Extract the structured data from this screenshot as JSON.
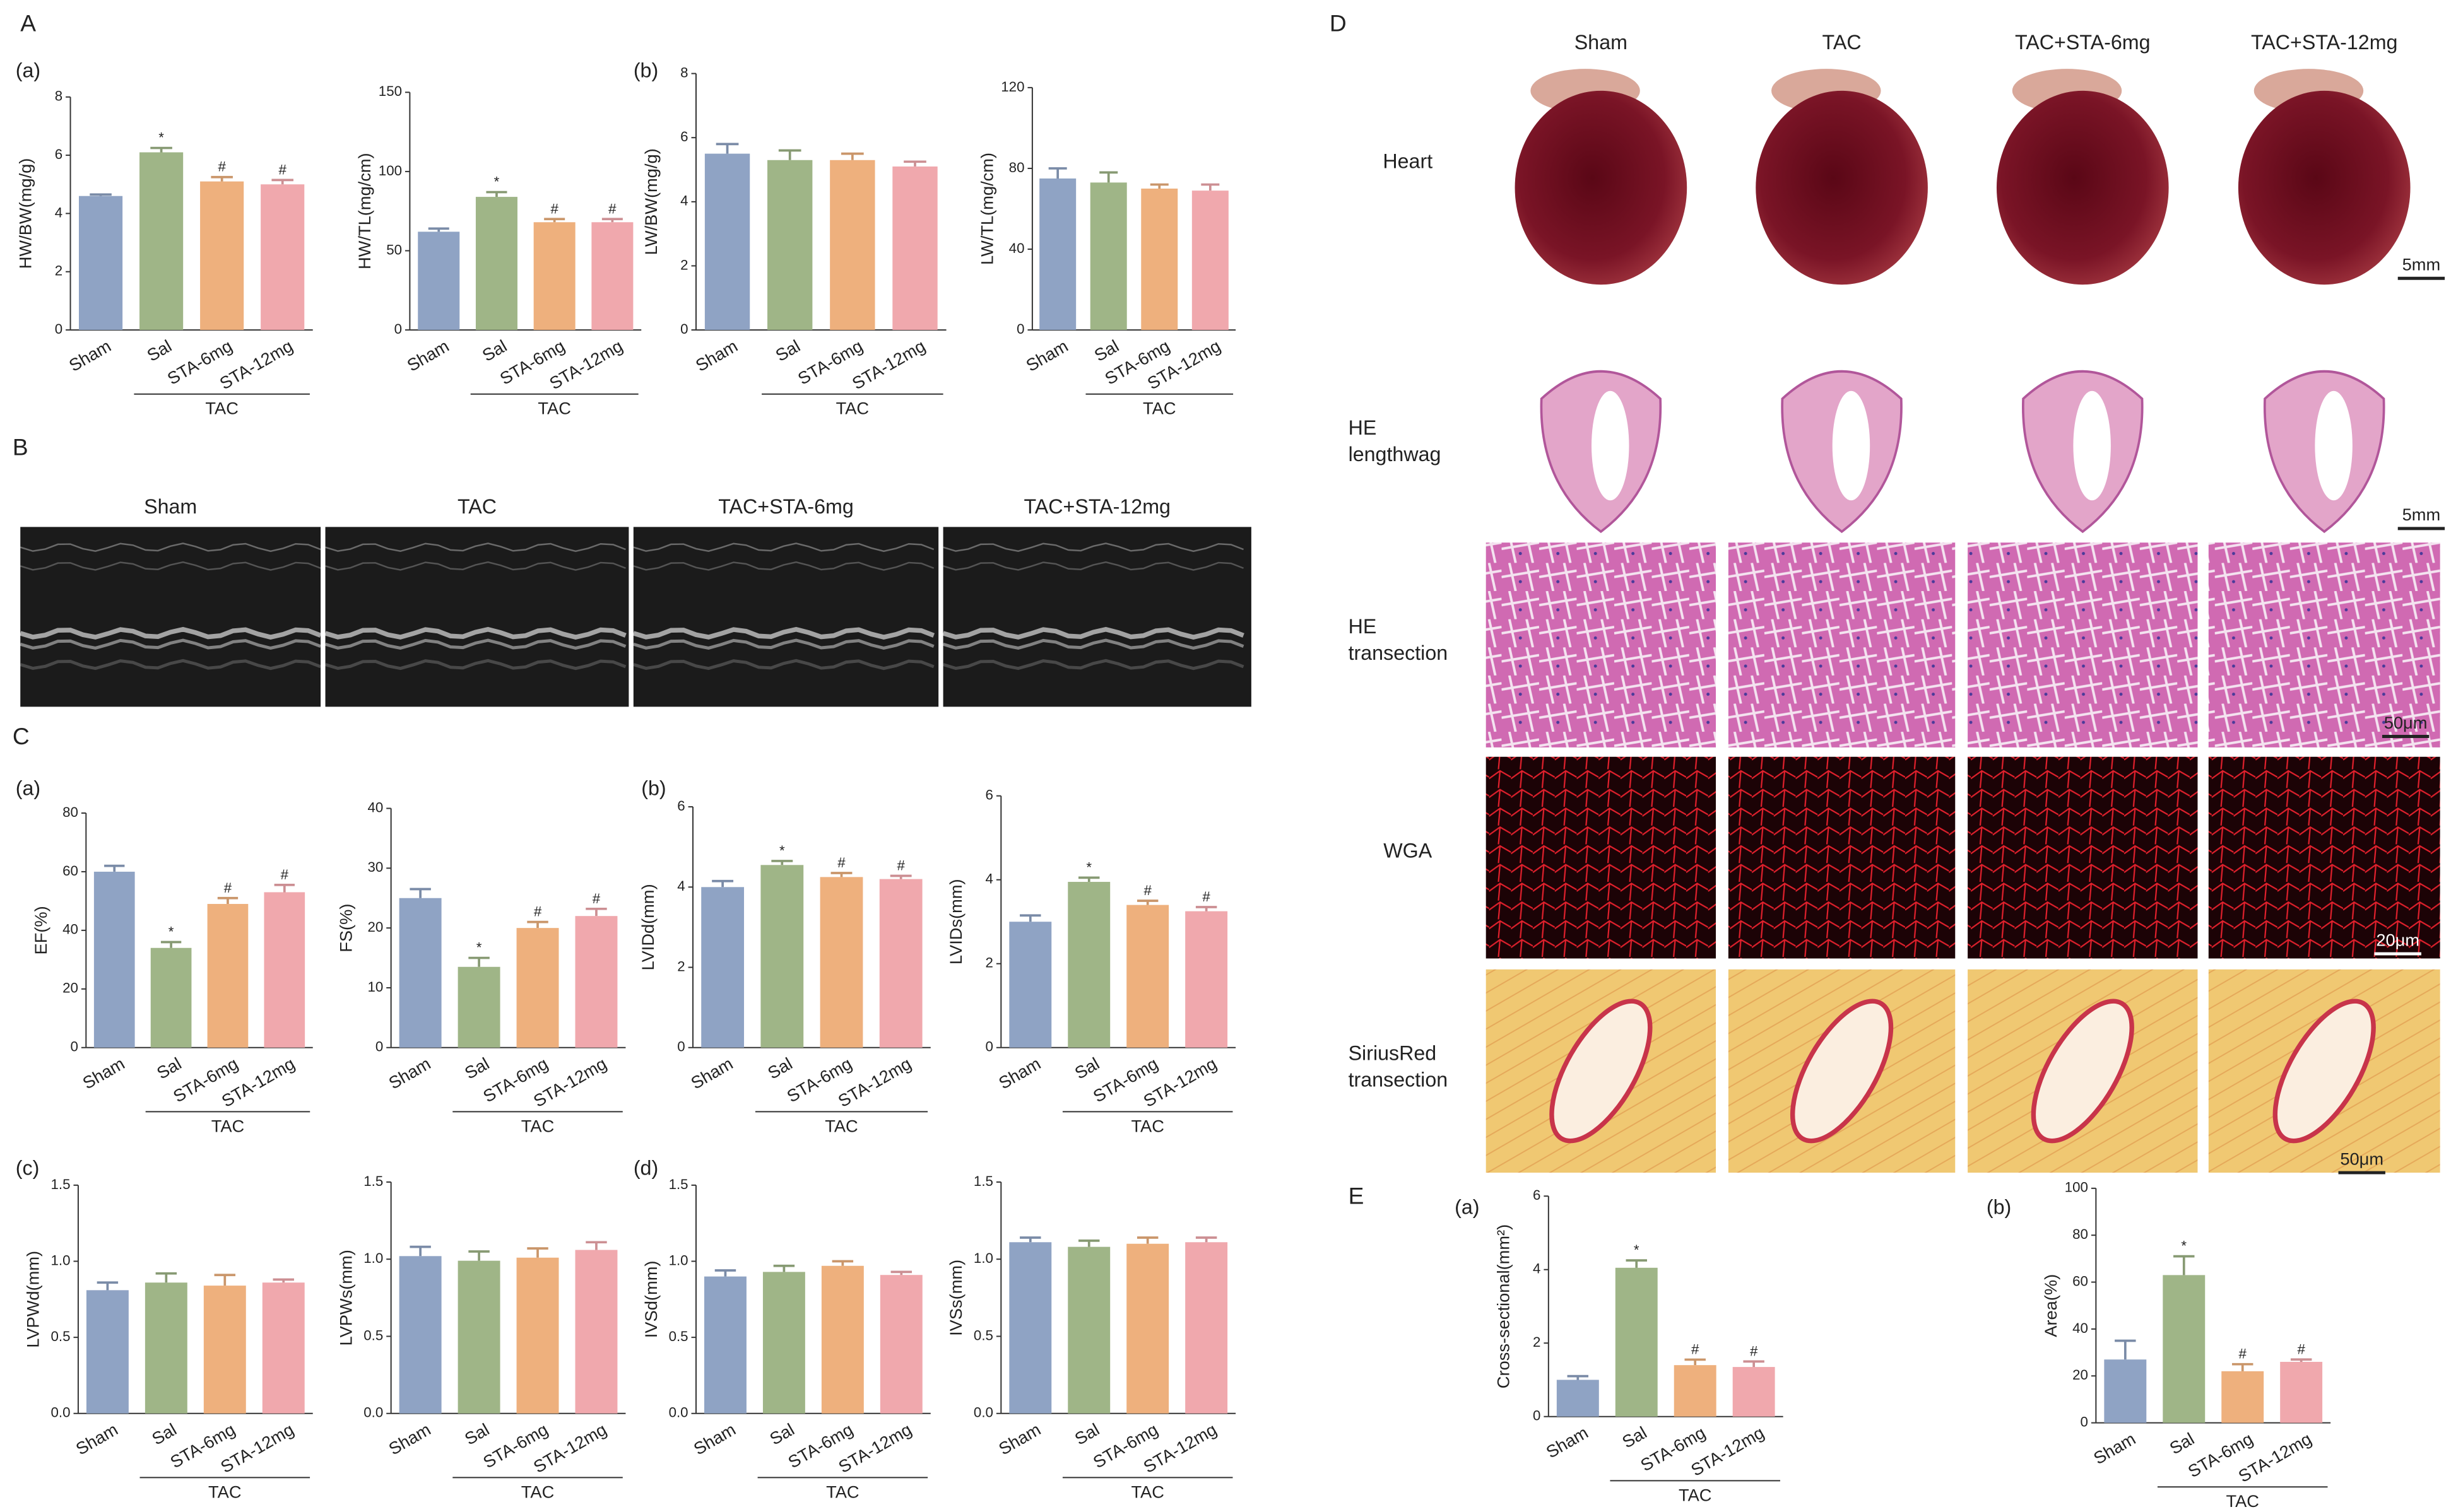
{
  "panel_labels": [
    "A",
    "B",
    "C",
    "D",
    "E"
  ],
  "sub_labels": [
    "(a)",
    "(b)",
    "(a)",
    "(b)",
    "(c)",
    "(d)",
    "(a)",
    "(b)"
  ],
  "echo": {
    "columns": [
      "Sham",
      "TAC",
      "TAC+STA-6mg",
      "TAC+STA-12mg"
    ]
  },
  "histology": {
    "columns": [
      "Sham",
      "TAC",
      "TAC+STA-6mg",
      "TAC+STA-12mg"
    ],
    "rows": [
      [
        "Heart"
      ],
      [
        "HE",
        "lengthwag"
      ],
      [
        "HE",
        "transection"
      ],
      [
        "WGA"
      ],
      [
        "SiriusRed",
        "transection"
      ]
    ],
    "scale_bars": [
      "5mm",
      "5mm",
      "50μm",
      "20μm",
      "50μm"
    ]
  },
  "chart_data": [
    {
      "type": "bar",
      "ylabel": "HW/BW(mg/g)",
      "categories": [
        "Sham",
        "Sal",
        "STA-6mg",
        "STA-12mg"
      ],
      "group_label": "TAC",
      "colors": [
        "#8fa3c4",
        "#9fb587",
        "#eeb07d",
        "#f0a8ad"
      ],
      "values": [
        4.6,
        6.1,
        5.1,
        5.0
      ],
      "errors": [
        0.05,
        0.15,
        0.15,
        0.15
      ],
      "annotations": [
        null,
        "*",
        "#",
        "#"
      ],
      "ylim": [
        0,
        8
      ],
      "yticks": [
        0,
        2,
        4,
        6,
        8
      ]
    },
    {
      "type": "bar",
      "ylabel": "HW/TL(mg/cm)",
      "categories": [
        "Sham",
        "Sal",
        "STA-6mg",
        "STA-12mg"
      ],
      "group_label": "TAC",
      "colors": [
        "#8fa3c4",
        "#9fb587",
        "#eeb07d",
        "#f0a8ad"
      ],
      "values": [
        62,
        84,
        68,
        68
      ],
      "errors": [
        2,
        3,
        2,
        2
      ],
      "annotations": [
        null,
        "*",
        "#",
        "#"
      ],
      "ylim": [
        0,
        150
      ],
      "yticks": [
        0,
        50,
        100,
        150
      ]
    },
    {
      "type": "bar",
      "ylabel": "LW/BW(mg/g)",
      "categories": [
        "Sham",
        "Sal",
        "STA-6mg",
        "STA-12mg"
      ],
      "group_label": "TAC",
      "colors": [
        "#8fa3c4",
        "#9fb587",
        "#eeb07d",
        "#f0a8ad"
      ],
      "values": [
        5.5,
        5.3,
        5.3,
        5.1
      ],
      "errors": [
        0.3,
        0.3,
        0.2,
        0.15
      ],
      "ylim": [
        0,
        8
      ],
      "yticks": [
        0,
        2,
        4,
        6,
        8
      ]
    },
    {
      "type": "bar",
      "ylabel": "LW/TL(mg/cm)",
      "categories": [
        "Sham",
        "Sal",
        "STA-6mg",
        "STA-12mg"
      ],
      "group_label": "TAC",
      "colors": [
        "#8fa3c4",
        "#9fb587",
        "#eeb07d",
        "#f0a8ad"
      ],
      "values": [
        75,
        73,
        70,
        69
      ],
      "errors": [
        5,
        5,
        2,
        3
      ],
      "ylim": [
        0,
        120
      ],
      "yticks": [
        0,
        40,
        80,
        120
      ]
    },
    {
      "type": "bar",
      "ylabel": "EF(%)",
      "categories": [
        "Sham",
        "Sal",
        "STA-6mg",
        "STA-12mg"
      ],
      "group_label": "TAC",
      "colors": [
        "#8fa3c4",
        "#9fb587",
        "#eeb07d",
        "#f0a8ad"
      ],
      "values": [
        60,
        34,
        49,
        53
      ],
      "errors": [
        2,
        2,
        2,
        2.5
      ],
      "annotations": [
        null,
        "*",
        "#",
        "#"
      ],
      "ylim": [
        0,
        80
      ],
      "yticks": [
        0,
        20,
        40,
        60,
        80
      ]
    },
    {
      "type": "bar",
      "ylabel": "FS(%)",
      "categories": [
        "Sham",
        "Sal",
        "STA-6mg",
        "STA-12mg"
      ],
      "group_label": "TAC",
      "colors": [
        "#8fa3c4",
        "#9fb587",
        "#eeb07d",
        "#f0a8ad"
      ],
      "values": [
        25,
        13.5,
        20,
        22
      ],
      "errors": [
        1.5,
        1.5,
        1,
        1.2
      ],
      "annotations": [
        null,
        "*",
        "#",
        "#"
      ],
      "ylim": [
        0,
        40
      ],
      "yticks": [
        0,
        10,
        20,
        30,
        40
      ]
    },
    {
      "type": "bar",
      "ylabel": "LVIDd(mm)",
      "categories": [
        "Sham",
        "Sal",
        "STA-6mg",
        "STA-12mg"
      ],
      "group_label": "TAC",
      "colors": [
        "#8fa3c4",
        "#9fb587",
        "#eeb07d",
        "#f0a8ad"
      ],
      "values": [
        4.0,
        4.55,
        4.25,
        4.2
      ],
      "errors": [
        0.15,
        0.1,
        0.1,
        0.08
      ],
      "annotations": [
        null,
        "*",
        "#",
        "#"
      ],
      "ylim": [
        0,
        6
      ],
      "yticks": [
        0,
        2,
        4,
        6
      ]
    },
    {
      "type": "bar",
      "ylabel": "LVIDs(mm)",
      "categories": [
        "Sham",
        "Sal",
        "STA-6mg",
        "STA-12mg"
      ],
      "group_label": "TAC",
      "colors": [
        "#8fa3c4",
        "#9fb587",
        "#eeb07d",
        "#f0a8ad"
      ],
      "values": [
        3.0,
        3.95,
        3.4,
        3.25
      ],
      "errors": [
        0.15,
        0.1,
        0.1,
        0.1
      ],
      "annotations": [
        null,
        "*",
        "#",
        "#"
      ],
      "ylim": [
        0,
        6
      ],
      "yticks": [
        0,
        2,
        4,
        6
      ]
    },
    {
      "type": "bar",
      "ylabel": "LVPWd(mm)",
      "categories": [
        "Sham",
        "Sal",
        "STA-6mg",
        "STA-12mg"
      ],
      "group_label": "TAC",
      "colors": [
        "#8fa3c4",
        "#9fb587",
        "#eeb07d",
        "#f0a8ad"
      ],
      "values": [
        0.81,
        0.86,
        0.84,
        0.86
      ],
      "errors": [
        0.05,
        0.06,
        0.07,
        0.02
      ],
      "ylim": [
        0,
        1.5
      ],
      "yticks": [
        {
          "value": 0,
          "label": "0.0"
        },
        0.5,
        {
          "value": 1,
          "label": "1.0"
        },
        1.5
      ]
    },
    {
      "type": "bar",
      "ylabel": "LVPWs(mm)",
      "categories": [
        "Sham",
        "Sal",
        "STA-6mg",
        "STA-12mg"
      ],
      "group_label": "TAC",
      "colors": [
        "#8fa3c4",
        "#9fb587",
        "#eeb07d",
        "#f0a8ad"
      ],
      "values": [
        1.02,
        0.99,
        1.01,
        1.06
      ],
      "errors": [
        0.06,
        0.06,
        0.06,
        0.05
      ],
      "ylim": [
        0,
        1.5
      ],
      "yticks": [
        {
          "value": 0,
          "label": "0.0"
        },
        0.5,
        {
          "value": 1,
          "label": "1.0"
        },
        1.5
      ]
    },
    {
      "type": "bar",
      "ylabel": "IVSd(mm)",
      "categories": [
        "Sham",
        "Sal",
        "STA-6mg",
        "STA-12mg"
      ],
      "group_label": "TAC",
      "colors": [
        "#8fa3c4",
        "#9fb587",
        "#eeb07d",
        "#f0a8ad"
      ],
      "values": [
        0.9,
        0.93,
        0.97,
        0.91
      ],
      "errors": [
        0.04,
        0.04,
        0.03,
        0.02
      ],
      "ylim": [
        0,
        1.5
      ],
      "yticks": [
        {
          "value": 0,
          "label": "0.0"
        },
        0.5,
        {
          "value": 1,
          "label": "1.0"
        },
        1.5
      ]
    },
    {
      "type": "bar",
      "ylabel": "IVSs(mm)",
      "categories": [
        "Sham",
        "Sal",
        "STA-6mg",
        "STA-12mg"
      ],
      "group_label": "TAC",
      "colors": [
        "#8fa3c4",
        "#9fb587",
        "#eeb07d",
        "#f0a8ad"
      ],
      "values": [
        1.11,
        1.08,
        1.1,
        1.11
      ],
      "errors": [
        0.03,
        0.04,
        0.04,
        0.03
      ],
      "ylim": [
        0,
        1.5
      ],
      "yticks": [
        {
          "value": 0,
          "label": "0.0"
        },
        0.5,
        {
          "value": 1,
          "label": "1.0"
        },
        1.5
      ]
    },
    {
      "type": "bar",
      "ylabel": "Cross-sectional(mm²)",
      "categories": [
        "Sham",
        "Sal",
        "STA-6mg",
        "STA-12mg"
      ],
      "group_label": "TAC",
      "colors": [
        "#8fa3c4",
        "#9fb587",
        "#eeb07d",
        "#f0a8ad"
      ],
      "values": [
        1.0,
        4.05,
        1.4,
        1.35
      ],
      "errors": [
        0.1,
        0.2,
        0.15,
        0.15
      ],
      "annotations": [
        null,
        "*",
        "#",
        "#"
      ],
      "ylim": [
        0,
        6
      ],
      "yticks": [
        0,
        2,
        4,
        6
      ]
    },
    {
      "type": "bar",
      "ylabel": "Area(%)",
      "categories": [
        "Sham",
        "Sal",
        "STA-6mg",
        "STA-12mg"
      ],
      "group_label": "TAC",
      "colors": [
        "#8fa3c4",
        "#9fb587",
        "#eeb07d",
        "#f0a8ad"
      ],
      "values": [
        27,
        63,
        22,
        26
      ],
      "errors": [
        8,
        8,
        3,
        1
      ],
      "annotations": [
        null,
        "*",
        "#",
        "#"
      ],
      "ylim": [
        0,
        100
      ],
      "yticks": [
        0,
        20,
        40,
        60,
        80,
        100
      ]
    }
  ]
}
